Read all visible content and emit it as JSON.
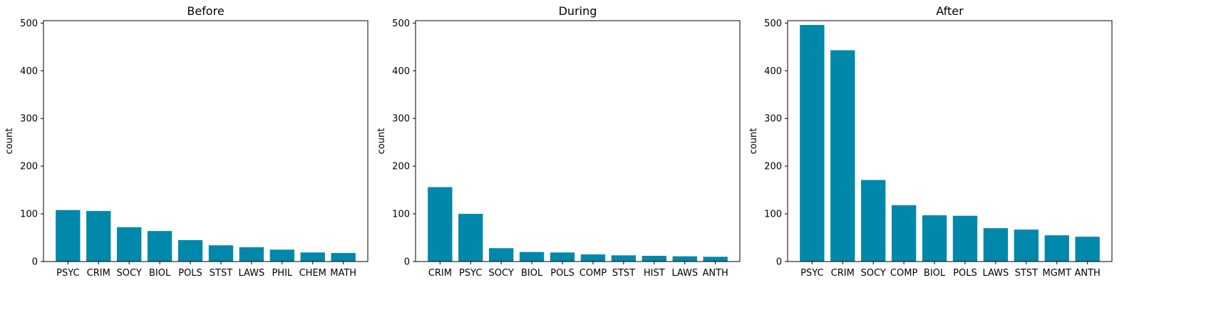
{
  "chart_data": [
    {
      "type": "bar",
      "title": "Before",
      "xlabel": "",
      "ylabel": "count",
      "ylim": [
        0,
        505
      ],
      "yticks": [
        0,
        100,
        200,
        300,
        400,
        500
      ],
      "bar_color": "#0088aa",
      "grid": false,
      "categories": [
        "PSYC",
        "CRIM",
        "SOCY",
        "BIOL",
        "POLS",
        "STST",
        "LAWS",
        "PHIL",
        "CHEM",
        "MATH"
      ],
      "values": [
        108,
        106,
        72,
        64,
        45,
        34,
        30,
        25,
        19,
        18
      ]
    },
    {
      "type": "bar",
      "title": "During",
      "xlabel": "",
      "ylabel": "count",
      "ylim": [
        0,
        505
      ],
      "yticks": [
        0,
        100,
        200,
        300,
        400,
        500
      ],
      "bar_color": "#0088aa",
      "grid": false,
      "categories": [
        "CRIM",
        "PSYC",
        "SOCY",
        "BIOL",
        "POLS",
        "COMP",
        "STST",
        "HIST",
        "LAWS",
        "ANTH"
      ],
      "values": [
        156,
        100,
        28,
        20,
        19,
        15,
        13,
        12,
        11,
        10
      ]
    },
    {
      "type": "bar",
      "title": "After",
      "xlabel": "",
      "ylabel": "count",
      "ylim": [
        0,
        505
      ],
      "yticks": [
        0,
        100,
        200,
        300,
        400,
        500
      ],
      "bar_color": "#0088aa",
      "grid": false,
      "categories": [
        "PSYC",
        "CRIM",
        "SOCY",
        "COMP",
        "BIOL",
        "POLS",
        "LAWS",
        "STST",
        "MGMT",
        "ANTH"
      ],
      "values": [
        496,
        443,
        171,
        118,
        97,
        96,
        70,
        67,
        55,
        52
      ]
    }
  ]
}
